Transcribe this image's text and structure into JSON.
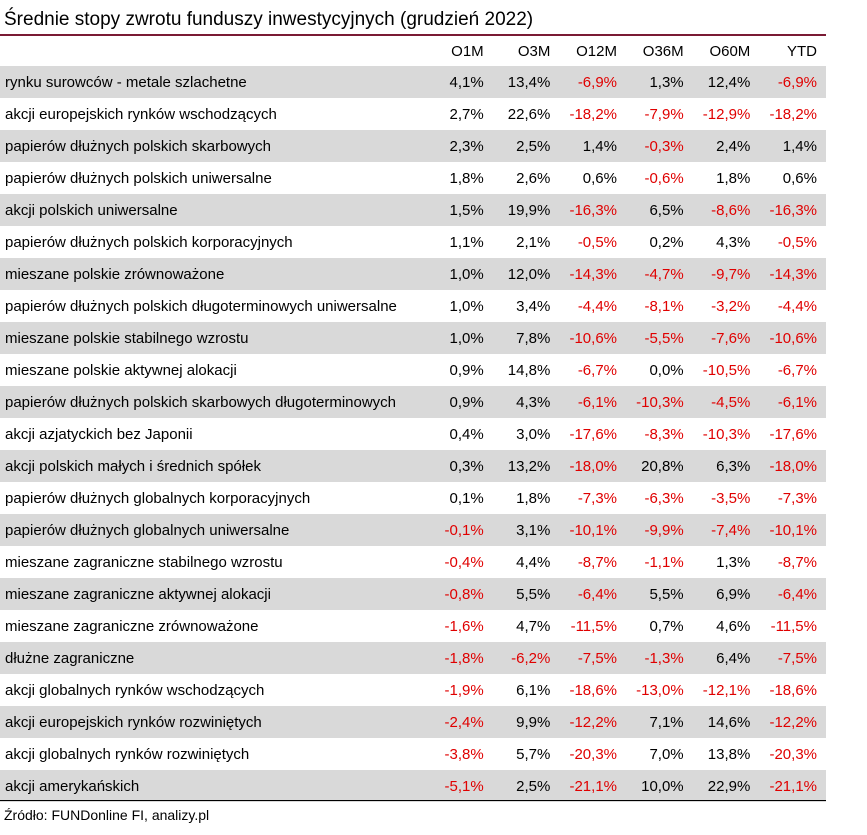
{
  "title": "Średnie stopy zwrotu funduszy inwestycyjnych (grudzień 2022)",
  "source": "Źródło: FUNDonline FI, analizy.pl",
  "colors": {
    "negative": "#e00000",
    "stripe": "#d9d9d9",
    "title_rule": "#7a1a34"
  },
  "table": {
    "columns": [
      "",
      "O1M",
      "O3M",
      "O12M",
      "O36M",
      "O60M",
      "YTD"
    ],
    "rows": [
      [
        "rynku surowców - metale szlachetne",
        "4,1%",
        "13,4%",
        "-6,9%",
        "1,3%",
        "12,4%",
        "-6,9%"
      ],
      [
        "akcji europejskich rynków wschodzących",
        "2,7%",
        "22,6%",
        "-18,2%",
        "-7,9%",
        "-12,9%",
        "-18,2%"
      ],
      [
        "papierów dłużnych polskich skarbowych",
        "2,3%",
        "2,5%",
        "1,4%",
        "-0,3%",
        "2,4%",
        "1,4%"
      ],
      [
        "papierów dłużnych polskich uniwersalne",
        "1,8%",
        "2,6%",
        "0,6%",
        "-0,6%",
        "1,8%",
        "0,6%"
      ],
      [
        "akcji polskich uniwersalne",
        "1,5%",
        "19,9%",
        "-16,3%",
        "6,5%",
        "-8,6%",
        "-16,3%"
      ],
      [
        "papierów dłużnych polskich korporacyjnych",
        "1,1%",
        "2,1%",
        "-0,5%",
        "0,2%",
        "4,3%",
        "-0,5%"
      ],
      [
        "mieszane polskie zrównoważone",
        "1,0%",
        "12,0%",
        "-14,3%",
        "-4,7%",
        "-9,7%",
        "-14,3%"
      ],
      [
        "papierów dłużnych polskich długoterminowych uniwersalne",
        "1,0%",
        "3,4%",
        "-4,4%",
        "-8,1%",
        "-3,2%",
        "-4,4%"
      ],
      [
        "mieszane polskie stabilnego wzrostu",
        "1,0%",
        "7,8%",
        "-10,6%",
        "-5,5%",
        "-7,6%",
        "-10,6%"
      ],
      [
        "mieszane polskie aktywnej alokacji",
        "0,9%",
        "14,8%",
        "-6,7%",
        "0,0%",
        "-10,5%",
        "-6,7%"
      ],
      [
        "papierów dłużnych polskich skarbowych długoterminowych",
        "0,9%",
        "4,3%",
        "-6,1%",
        "-10,3%",
        "-4,5%",
        "-6,1%"
      ],
      [
        "akcji azjatyckich bez Japonii",
        "0,4%",
        "3,0%",
        "-17,6%",
        "-8,3%",
        "-10,3%",
        "-17,6%"
      ],
      [
        "akcji polskich małych i średnich spółek",
        "0,3%",
        "13,2%",
        "-18,0%",
        "20,8%",
        "6,3%",
        "-18,0%"
      ],
      [
        "papierów dłużnych globalnych korporacyjnych",
        "0,1%",
        "1,8%",
        "-7,3%",
        "-6,3%",
        "-3,5%",
        "-7,3%"
      ],
      [
        "papierów dłużnych globalnych uniwersalne",
        "-0,1%",
        "3,1%",
        "-10,1%",
        "-9,9%",
        "-7,4%",
        "-10,1%"
      ],
      [
        "mieszane zagraniczne stabilnego wzrostu",
        "-0,4%",
        "4,4%",
        "-8,7%",
        "-1,1%",
        "1,3%",
        "-8,7%"
      ],
      [
        "mieszane zagraniczne aktywnej alokacji",
        "-0,8%",
        "5,5%",
        "-6,4%",
        "5,5%",
        "6,9%",
        "-6,4%"
      ],
      [
        "mieszane zagraniczne zrównoważone",
        "-1,6%",
        "4,7%",
        "-11,5%",
        "0,7%",
        "4,6%",
        "-11,5%"
      ],
      [
        "dłużne zagraniczne",
        "-1,8%",
        "-6,2%",
        "-7,5%",
        "-1,3%",
        "6,4%",
        "-7,5%"
      ],
      [
        "akcji globalnych rynków wschodzących",
        "-1,9%",
        "6,1%",
        "-18,6%",
        "-13,0%",
        "-12,1%",
        "-18,6%"
      ],
      [
        "akcji europejskich rynków rozwiniętych",
        "-2,4%",
        "9,9%",
        "-12,2%",
        "7,1%",
        "14,6%",
        "-12,2%"
      ],
      [
        "akcji globalnych rynków rozwiniętych",
        "-3,8%",
        "5,7%",
        "-20,3%",
        "7,0%",
        "13,8%",
        "-20,3%"
      ],
      [
        "akcji amerykańskich",
        "-5,1%",
        "2,5%",
        "-21,1%",
        "10,0%",
        "22,9%",
        "-21,1%"
      ]
    ]
  }
}
